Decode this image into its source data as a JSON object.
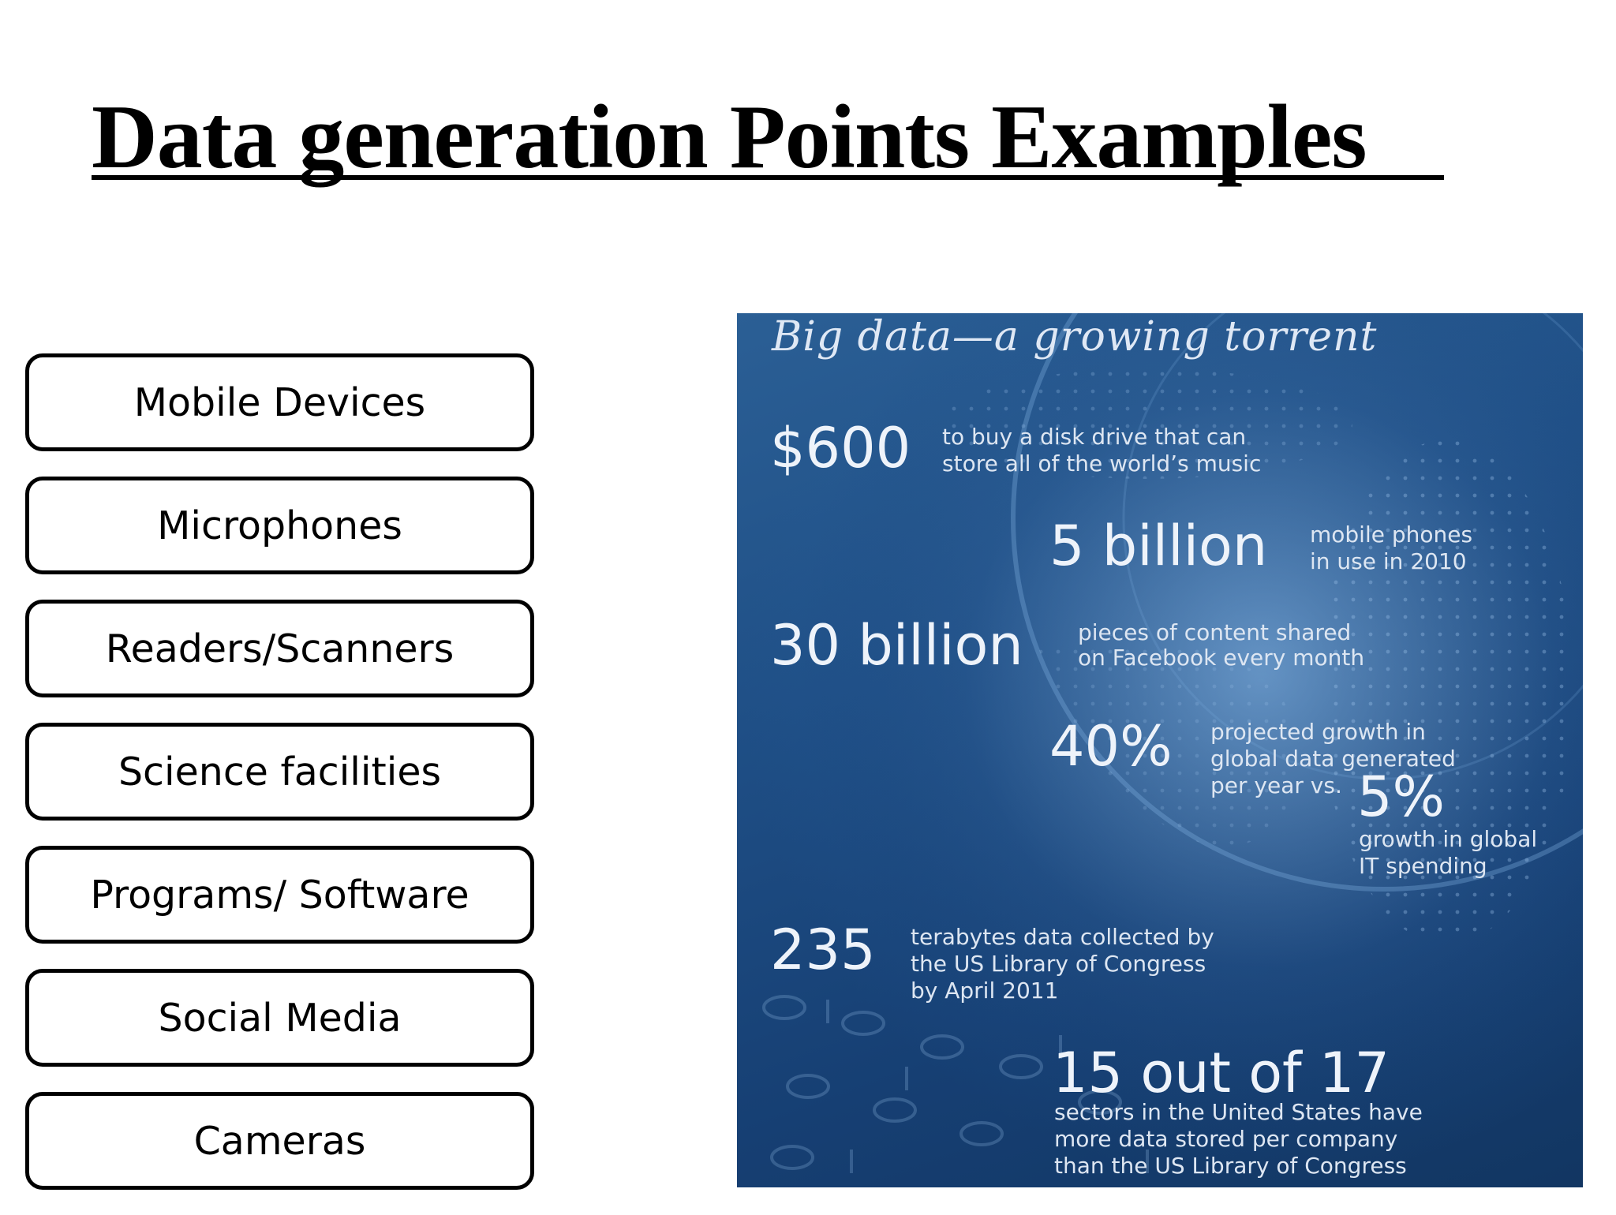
{
  "slide": {
    "title": "Data generation Points Examples "
  },
  "sources": [
    "Mobile Devices",
    "Microphones",
    "Readers/Scanners",
    "Science facilities",
    "Programs/ Software",
    "Social Media",
    "Cameras"
  ],
  "infographic": {
    "title": "Big data—a growing torrent",
    "stats": {
      "disk": {
        "value": "$600",
        "line1": "to buy a disk drive that can",
        "line2": "store all of the world’s music"
      },
      "phones": {
        "value": "5 billion",
        "line1": "mobile phones",
        "line2": "in use in 2010"
      },
      "facebook": {
        "value": "30 billion",
        "line1": "pieces of content shared",
        "line2": "on Facebook every month"
      },
      "growth": {
        "value": "40%",
        "line1": "projected growth in",
        "line2": "global data generated",
        "line3": "per year vs."
      },
      "it": {
        "value": "5%",
        "line1": "growth in global",
        "line2": "IT spending"
      },
      "library": {
        "value": "235",
        "line1": "terabytes data collected by",
        "line2": "the US Library of Congress",
        "line3": "by April 2011"
      },
      "sectors": {
        "value": "15 out of 17",
        "line1": "sectors in the United States have",
        "line2": "more data stored per company",
        "line3": "than the US Library of Congress"
      }
    }
  },
  "colors": {
    "infographic_bg": "#1f4f86",
    "text_light": "#eef3fa"
  }
}
